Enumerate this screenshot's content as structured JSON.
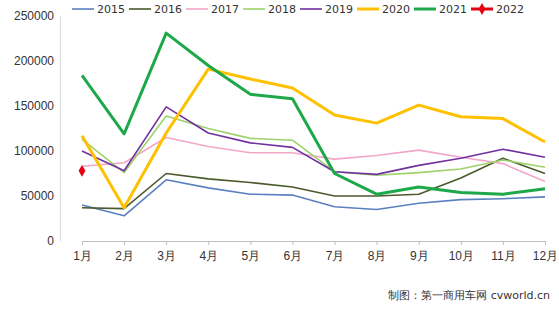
{
  "chart_data": {
    "type": "line",
    "categories": [
      "1月",
      "2月",
      "3月",
      "4月",
      "5月",
      "6月",
      "7月",
      "8月",
      "9月",
      "10月",
      "11月",
      "12月"
    ],
    "series": [
      {
        "name": "2015",
        "color": "#5b80c0",
        "values": [
          40000,
          28000,
          68000,
          59000,
          52000,
          51000,
          38000,
          35000,
          42000,
          46000,
          47000,
          49000
        ]
      },
      {
        "name": "2016",
        "color": "#4b5a2c",
        "values": [
          37000,
          36000,
          75000,
          69000,
          65000,
          60000,
          50000,
          50000,
          52000,
          70000,
          92000,
          75000
        ]
      },
      {
        "name": "2017",
        "color": "#f2a7c9",
        "values": [
          83000,
          87000,
          115000,
          105000,
          98000,
          98000,
          91000,
          95000,
          101000,
          93000,
          86000,
          66000
        ]
      },
      {
        "name": "2018",
        "color": "#9dd26c",
        "values": [
          113000,
          76000,
          139000,
          125000,
          114000,
          112000,
          77000,
          73000,
          76000,
          80000,
          90000,
          82000
        ]
      },
      {
        "name": "2019",
        "color": "#7132a0",
        "values": [
          100000,
          78000,
          149000,
          120000,
          109000,
          104000,
          77000,
          74000,
          84000,
          92000,
          102000,
          93000
        ]
      },
      {
        "name": "2020",
        "color": "#ffc000",
        "values": [
          117000,
          37000,
          120000,
          191000,
          180000,
          170000,
          140000,
          131000,
          151000,
          138000,
          136000,
          110000
        ]
      },
      {
        "name": "2021",
        "color": "#1fa84a",
        "values": [
          184000,
          119000,
          231000,
          195000,
          163000,
          158000,
          75000,
          52000,
          60000,
          54000,
          52000,
          58000
        ]
      },
      {
        "name": "2022",
        "color": "#e60012",
        "marker": "diamond",
        "values": [
          78000,
          null,
          null,
          null,
          null,
          null,
          null,
          null,
          null,
          null,
          null,
          null
        ]
      }
    ],
    "ylim": [
      0,
      250000
    ],
    "yticks": [
      0,
      50000,
      100000,
      150000,
      200000,
      250000
    ],
    "grid": false,
    "legend": "top",
    "annotation": "制图：第一商用车网 cvworld.cn"
  }
}
